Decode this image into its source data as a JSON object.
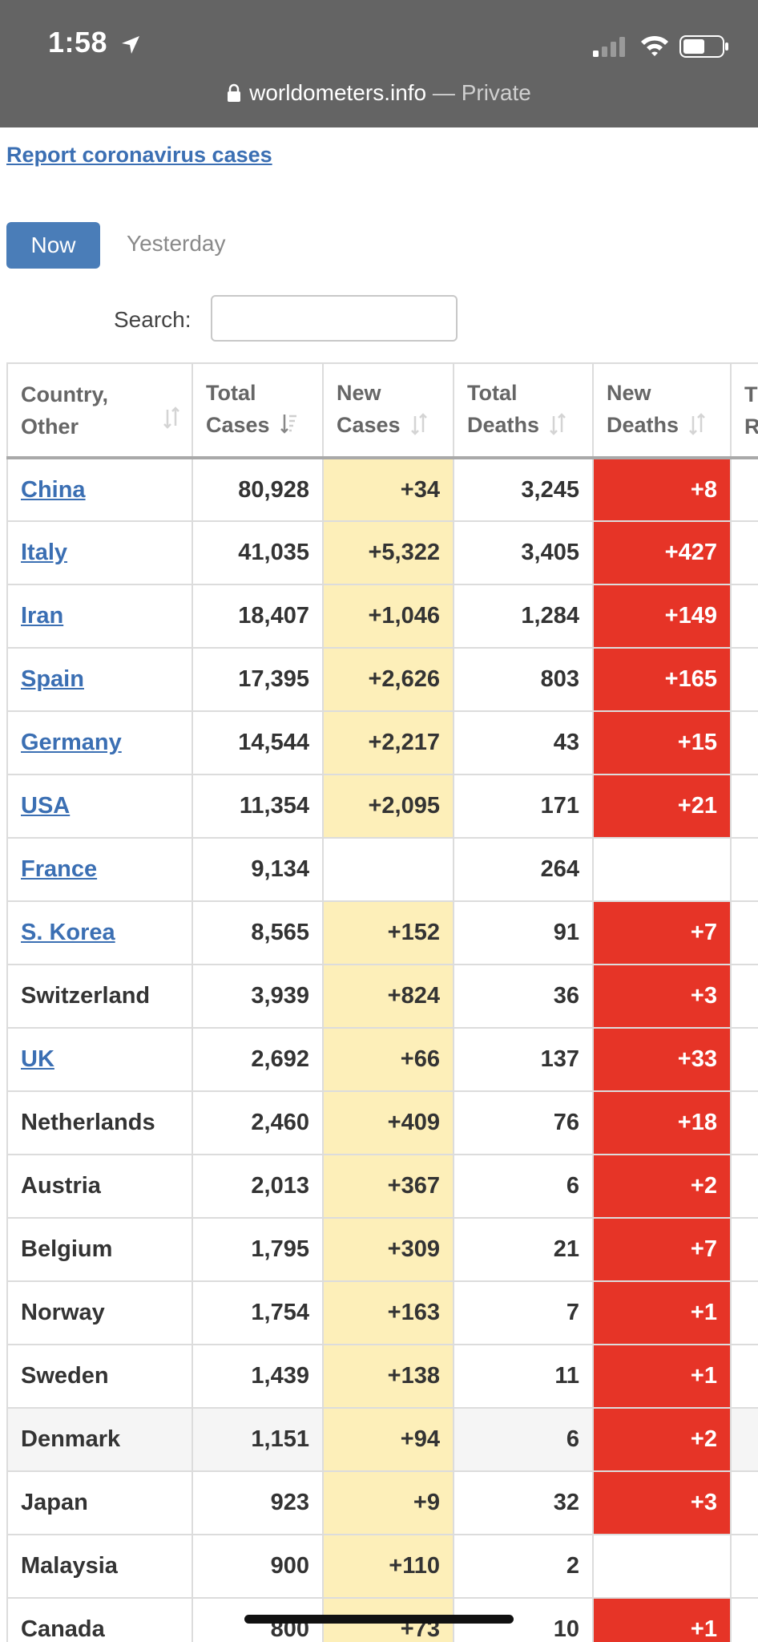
{
  "status_bar": {
    "time": "1:58"
  },
  "browser": {
    "domain": "worldometers.info",
    "separator": " — ",
    "mode": "Private"
  },
  "page": {
    "report_link": "Report coronavirus cases",
    "tabs": {
      "now": "Now",
      "yesterday": "Yesterday"
    },
    "search": {
      "label": "Search:",
      "placeholder": ""
    }
  },
  "table": {
    "headers": [
      {
        "line1": "Country,",
        "line2": "Other"
      },
      {
        "line1": "Total",
        "line2": "Cases"
      },
      {
        "line1": "New",
        "line2": "Cases"
      },
      {
        "line1": "Total",
        "line2": "Deaths"
      },
      {
        "line1": "New",
        "line2": "Deaths"
      },
      {
        "line1": "T",
        "line2": "R"
      }
    ],
    "rows": [
      {
        "country": "China",
        "linked": true,
        "total_cases": "80,928",
        "new_cases": "+34",
        "total_deaths": "3,245",
        "new_deaths": "+8"
      },
      {
        "country": "Italy",
        "linked": true,
        "total_cases": "41,035",
        "new_cases": "+5,322",
        "total_deaths": "3,405",
        "new_deaths": "+427"
      },
      {
        "country": "Iran",
        "linked": true,
        "total_cases": "18,407",
        "new_cases": "+1,046",
        "total_deaths": "1,284",
        "new_deaths": "+149"
      },
      {
        "country": "Spain",
        "linked": true,
        "total_cases": "17,395",
        "new_cases": "+2,626",
        "total_deaths": "803",
        "new_deaths": "+165"
      },
      {
        "country": "Germany",
        "linked": true,
        "total_cases": "14,544",
        "new_cases": "+2,217",
        "total_deaths": "43",
        "new_deaths": "+15"
      },
      {
        "country": "USA",
        "linked": true,
        "total_cases": "11,354",
        "new_cases": "+2,095",
        "total_deaths": "171",
        "new_deaths": "+21"
      },
      {
        "country": "France",
        "linked": true,
        "total_cases": "9,134",
        "new_cases": "",
        "total_deaths": "264",
        "new_deaths": ""
      },
      {
        "country": "S. Korea",
        "linked": true,
        "total_cases": "8,565",
        "new_cases": "+152",
        "total_deaths": "91",
        "new_deaths": "+7"
      },
      {
        "country": "Switzerland",
        "linked": false,
        "total_cases": "3,939",
        "new_cases": "+824",
        "total_deaths": "36",
        "new_deaths": "+3"
      },
      {
        "country": "UK",
        "linked": true,
        "total_cases": "2,692",
        "new_cases": "+66",
        "total_deaths": "137",
        "new_deaths": "+33"
      },
      {
        "country": "Netherlands",
        "linked": false,
        "total_cases": "2,460",
        "new_cases": "+409",
        "total_deaths": "76",
        "new_deaths": "+18"
      },
      {
        "country": "Austria",
        "linked": false,
        "total_cases": "2,013",
        "new_cases": "+367",
        "total_deaths": "6",
        "new_deaths": "+2"
      },
      {
        "country": "Belgium",
        "linked": false,
        "total_cases": "1,795",
        "new_cases": "+309",
        "total_deaths": "21",
        "new_deaths": "+7"
      },
      {
        "country": "Norway",
        "linked": false,
        "total_cases": "1,754",
        "new_cases": "+163",
        "total_deaths": "7",
        "new_deaths": "+1"
      },
      {
        "country": "Sweden",
        "linked": false,
        "total_cases": "1,439",
        "new_cases": "+138",
        "total_deaths": "11",
        "new_deaths": "+1"
      },
      {
        "country": "Denmark",
        "linked": false,
        "total_cases": "1,151",
        "new_cases": "+94",
        "total_deaths": "6",
        "new_deaths": "+2",
        "highlight": true
      },
      {
        "country": "Japan",
        "linked": false,
        "total_cases": "923",
        "new_cases": "+9",
        "total_deaths": "32",
        "new_deaths": "+3"
      },
      {
        "country": "Malaysia",
        "linked": false,
        "total_cases": "900",
        "new_cases": "+110",
        "total_deaths": "2",
        "new_deaths": ""
      },
      {
        "country": "Canada",
        "linked": false,
        "total_cases": "800",
        "new_cases": "+73",
        "total_deaths": "10",
        "new_deaths": "+1"
      }
    ]
  },
  "colors": {
    "link": "#3b6fb3",
    "now_button": "#4a7db8",
    "new_cases_bg": "#fdefb9",
    "new_deaths_bg": "#e63427",
    "chrome_bg": "#646464"
  },
  "icons": [
    "location-arrow-icon",
    "signal-icon",
    "wifi-icon",
    "battery-icon",
    "lock-icon",
    "sort-icon"
  ]
}
